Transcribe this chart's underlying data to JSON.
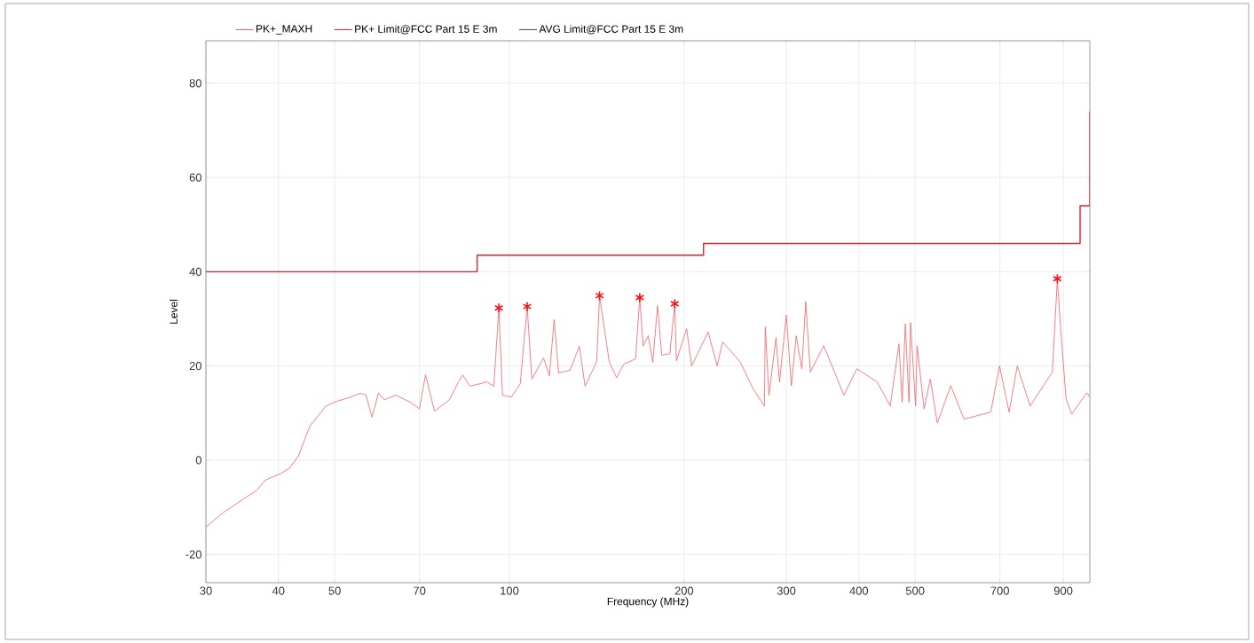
{
  "chart_data": {
    "type": "line",
    "xlabel": "Frequency (MHz)",
    "ylabel": "Level",
    "log": "x",
    "grid": true,
    "legend": "top",
    "line_style": "solid",
    "xlim": [
      30,
      1000
    ],
    "ylim": [
      -26,
      89
    ],
    "xticks": [
      30,
      40,
      50,
      70,
      100,
      200,
      300,
      400,
      500,
      700,
      900
    ],
    "yticks": [
      -20,
      0,
      20,
      40,
      60,
      80
    ],
    "series": [
      {
        "name": "PK+_MAXH",
        "color": "#f0606a",
        "x": [
          30,
          32,
          33.9,
          36.7,
          38,
          40.4,
          41.8,
          43.3,
          45.3,
          48.3,
          50.4,
          52.7,
          55.4,
          56.6,
          58,
          59.5,
          60.9,
          63.7,
          67.5,
          70,
          71.7,
          74.3,
          78.8,
          81.7,
          83.1,
          85.5,
          91.6,
          94,
          95.9,
          97.3,
          100.8,
          104.4,
          107.3,
          109.3,
          114.5,
          117.2,
          119.4,
          121.6,
          127.2,
          132,
          135,
          141.4,
          143,
          148.6,
          153,
          157.5,
          165,
          167.7,
          170,
          173.5,
          176.6,
          180,
          183,
          189,
          192.7,
          194,
          202,
          206,
          220,
          228,
          233,
          250,
          263,
          275,
          276,
          280,
          288,
          292,
          300,
          306,
          312,
          319,
          324,
          330,
          348,
          377,
          397,
          430,
          453,
          469,
          475,
          481,
          488,
          491,
          501,
          504,
          518,
          531,
          546,
          576,
          607,
          675,
          699,
          726,
          750,
          789,
          832,
          862,
          879,
          890,
          910,
          931,
          988,
          1000
        ],
        "values": [
          -14.2,
          -11.3,
          -9.2,
          -6.4,
          -4.2,
          -2.8,
          -1.7,
          0.9,
          7.2,
          11.5,
          12.5,
          13.2,
          14.2,
          13.8,
          9.1,
          14.3,
          12.8,
          13.8,
          12.3,
          10.9,
          18.1,
          10.4,
          12.8,
          16.6,
          18.1,
          15.7,
          16.6,
          15.7,
          32.3,
          13.8,
          13.4,
          16.2,
          32.6,
          17.2,
          21.7,
          17.9,
          29.8,
          18.5,
          19.1,
          24.2,
          15.7,
          20.9,
          34.9,
          20.9,
          17.5,
          20.4,
          21.5,
          34.5,
          24.3,
          26.4,
          20.8,
          32.8,
          22.3,
          22.6,
          33.2,
          21.1,
          27.9,
          20,
          27.2,
          20,
          25.1,
          20.8,
          15.1,
          11.5,
          28.3,
          13.8,
          26,
          16.6,
          30.8,
          15.8,
          26.4,
          19.4,
          33.6,
          18.7,
          24.3,
          13.8,
          19.4,
          16.6,
          11.5,
          24.7,
          12.3,
          28.9,
          12.3,
          29.2,
          11.5,
          24.3,
          10.9,
          17.2,
          7.9,
          15.8,
          8.7,
          10.2,
          20,
          10.2,
          20,
          11.5,
          15.8,
          18.7,
          38.5,
          28.5,
          13,
          9.8,
          14.3,
          13.4
        ]
      },
      {
        "name": "PK+ Limit@FCC Part 15 E  3m",
        "type": "step",
        "color": "#e8202a",
        "x": [
          30,
          88,
          216,
          962,
          1000
        ],
        "values": [
          40,
          43.5,
          46,
          54,
          74
        ]
      },
      {
        "name": "AVG Limit@FCC Part 15 E  3m",
        "type": "step",
        "color": "#3a3ac0"
      },
      {
        "type": "scatter",
        "marker": "cross",
        "color": "#ff1010",
        "x": [
          95.9,
          107.3,
          143,
          167.7,
          192.7,
          879
        ],
        "values": [
          32.3,
          32.6,
          34.9,
          34.5,
          33.2,
          38.5
        ]
      }
    ]
  }
}
